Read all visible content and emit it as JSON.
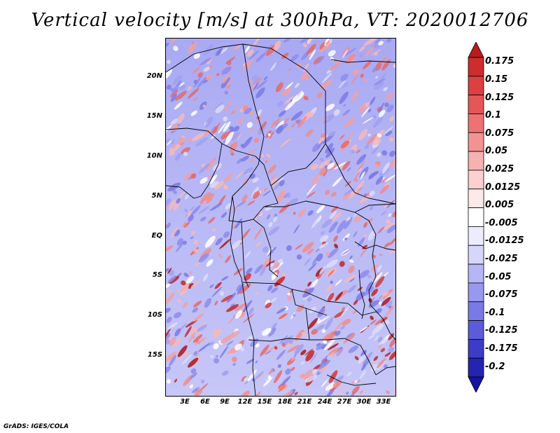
{
  "title": "Vertical velocity [m/s] at 300hPa, VT: 2020012706",
  "map": {
    "lat_labels": [
      "20N",
      "15N",
      "10N",
      "5N",
      "EQ",
      "5S",
      "10S",
      "15S"
    ],
    "lon_labels": [
      "3E",
      "6E",
      "9E",
      "12E",
      "15E",
      "18E",
      "21E",
      "24E",
      "27E",
      "30E",
      "33E"
    ]
  },
  "colorbar": {
    "labels": [
      "0.175",
      "0.15",
      "0.125",
      "0.1",
      "0.075",
      "0.05",
      "0.025",
      "0.0125",
      "0.005",
      "-0.005",
      "-0.0125",
      "-0.025",
      "-0.05",
      "-0.075",
      "-0.1",
      "-0.125",
      "-0.175",
      "-0.2"
    ],
    "colors": [
      "#b81c1c",
      "#cc2d2d",
      "#dc4040",
      "#e45757",
      "#ec7373",
      "#f29393",
      "#f6b2b2",
      "#fad0d0",
      "#fde9e9",
      "#ffffff",
      "#ececfd",
      "#d6d6fa",
      "#b6b6f4",
      "#9898ee",
      "#7a7ae6",
      "#5c5cda",
      "#3c3cc6",
      "#2424b0",
      "#1414a0"
    ]
  },
  "credit": "GrADS: IGES/COLA"
}
